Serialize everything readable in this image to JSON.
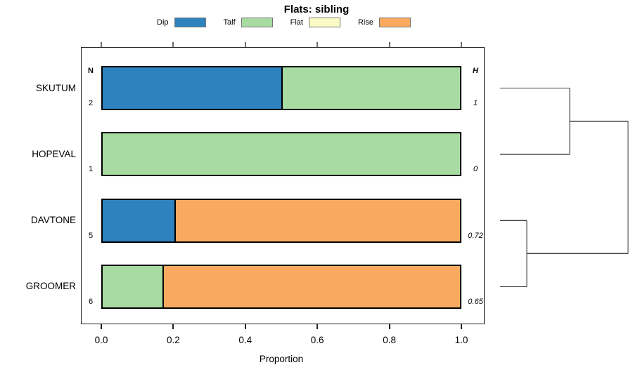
{
  "title": "Flats: sibling",
  "legend": {
    "items": [
      {
        "label": "Dip",
        "color": "#2E82BE"
      },
      {
        "label": "Talf",
        "color": "#A8DBA2"
      },
      {
        "label": "Flat",
        "color": "#FBFBC6"
      },
      {
        "label": "Rise",
        "color": "#FAAA60"
      }
    ]
  },
  "columns": {
    "n_header": "N",
    "h_header": "H"
  },
  "chart_data": {
    "type": "bar",
    "orientation": "horizontal",
    "stacked": true,
    "title": "Flats: sibling",
    "xlabel": "Proportion",
    "xlim": [
      0,
      1
    ],
    "x_ticks": [
      {
        "value": 0.0,
        "label": "0.0"
      },
      {
        "value": 0.2,
        "label": "0.2"
      },
      {
        "value": 0.4,
        "label": "0.4"
      },
      {
        "value": 0.6,
        "label": "0.6"
      },
      {
        "value": 0.8,
        "label": "0.8"
      },
      {
        "value": 1.0,
        "label": "1.0"
      }
    ],
    "categories": [
      "Dip",
      "Talf",
      "Flat",
      "Rise"
    ],
    "rows": [
      {
        "label": "SKUTUM",
        "n": "2",
        "h": "1",
        "segments": [
          {
            "category": "Dip",
            "value": 0.5
          },
          {
            "category": "Talf",
            "value": 0.5
          }
        ]
      },
      {
        "label": "HOPEVAL",
        "n": "1",
        "h": "0",
        "segments": [
          {
            "category": "Talf",
            "value": 1.0
          }
        ]
      },
      {
        "label": "DAVTONE",
        "n": "5",
        "h": "0.72",
        "segments": [
          {
            "category": "Dip",
            "value": 0.2
          },
          {
            "category": "Rise",
            "value": 0.8
          }
        ]
      },
      {
        "label": "GROOMER",
        "n": "6",
        "h": "0.65",
        "segments": [
          {
            "category": "Talf",
            "value": 0.167
          },
          {
            "category": "Rise",
            "value": 0.833
          }
        ]
      }
    ],
    "dendrogram": {
      "leaves": [
        "SKUTUM",
        "HOPEVAL",
        "DAVTONE",
        "GROOMER"
      ],
      "merges": [
        {
          "id": "merge0",
          "children": [
            "SKUTUM",
            "HOPEVAL"
          ],
          "height": 0.544
        },
        {
          "id": "merge1",
          "children": [
            "DAVTONE",
            "GROOMER"
          ],
          "height": 0.209
        },
        {
          "id": "root",
          "children": [
            "merge0",
            "merge1"
          ],
          "height": 1.0
        }
      ]
    }
  }
}
